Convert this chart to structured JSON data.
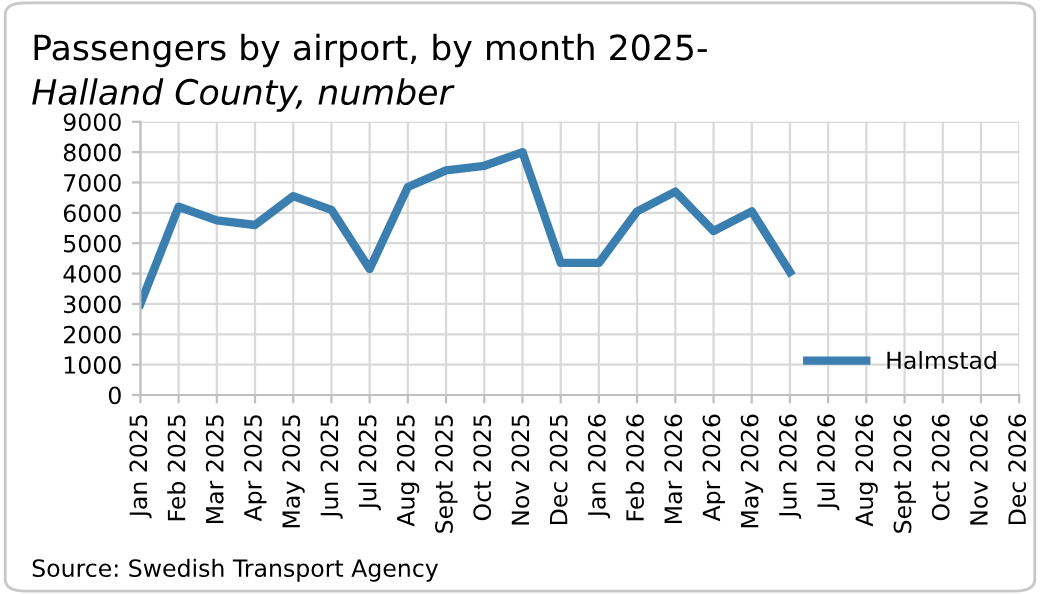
{
  "chart_data": {
    "type": "line",
    "title": "Passengers by airport, by month 2025-",
    "subtitle": "Halland County, number",
    "categories": [
      "Jan 2025",
      "Feb 2025",
      "Mar 2025",
      "Apr 2025",
      "May 2025",
      "Jun 2025",
      "Jul 2025",
      "Aug 2025",
      "Sept 2025",
      "Oct 2025",
      "Nov 2025",
      "Dec 2025",
      "Jan 2026",
      "Feb 2026",
      "Mar 2026",
      "Apr 2026",
      "May 2026",
      "Jun 2026",
      "Jul 2026",
      "Aug 2026",
      "Sept 2026",
      "Oct 2026",
      "Nov 2026",
      "Dec 2026"
    ],
    "series": [
      {
        "name": "Halmstad",
        "color": "#3a7fb0",
        "values": [
          3000,
          6200,
          5750,
          5600,
          6550,
          6100,
          4150,
          6850,
          7400,
          7550,
          8000,
          4350,
          4350,
          6050,
          6700,
          5400,
          6050,
          4050,
          null,
          null,
          null,
          null,
          null,
          null
        ]
      }
    ],
    "ylim": [
      0,
      9000
    ],
    "yticks": [
      0,
      1000,
      2000,
      3000,
      4000,
      5000,
      6000,
      7000,
      8000,
      9000
    ],
    "grid": true,
    "legend": "bottom right",
    "marker": "none",
    "line_style": "solid",
    "annotations": [
      "Source: Swedish Transport Agency"
    ]
  }
}
